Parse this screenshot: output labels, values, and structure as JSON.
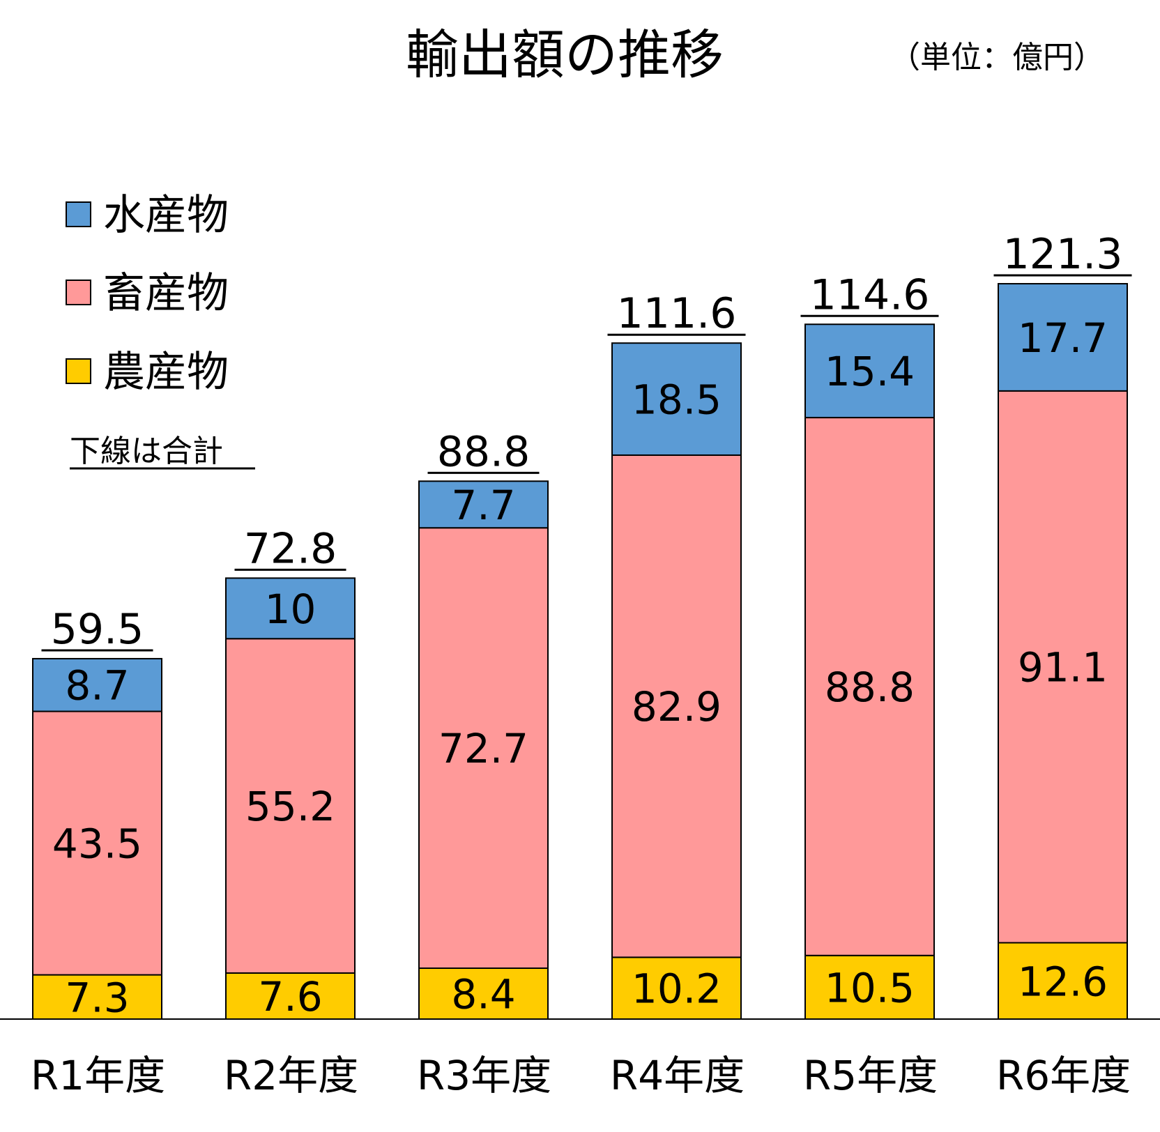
{
  "chart_data": {
    "type": "bar",
    "stacked": true,
    "title": "輸出額の推移",
    "unit_label": "（単位：億円）",
    "note": "下線は合計",
    "categories": [
      "R1年度",
      "R2年度",
      "R3年度",
      "R4年度",
      "R5年度",
      "R6年度"
    ],
    "series": [
      {
        "name": "農産物",
        "color": "#ffcc00",
        "values": [
          7.3,
          7.6,
          8.4,
          10.2,
          10.5,
          12.6
        ]
      },
      {
        "name": "畜産物",
        "color": "#ff9999",
        "values": [
          43.5,
          55.2,
          72.7,
          82.9,
          88.8,
          91.1
        ]
      },
      {
        "name": "水産物",
        "color": "#5b9bd5",
        "values": [
          8.7,
          10,
          7.7,
          18.5,
          15.4,
          17.7
        ]
      }
    ],
    "totals": [
      59.5,
      72.8,
      88.8,
      111.6,
      114.6,
      121.3
    ],
    "legend_order": [
      "水産物",
      "畜産物",
      "農産物"
    ],
    "legend_position": "top-left",
    "grid": false,
    "ylim": [
      0,
      130
    ]
  }
}
